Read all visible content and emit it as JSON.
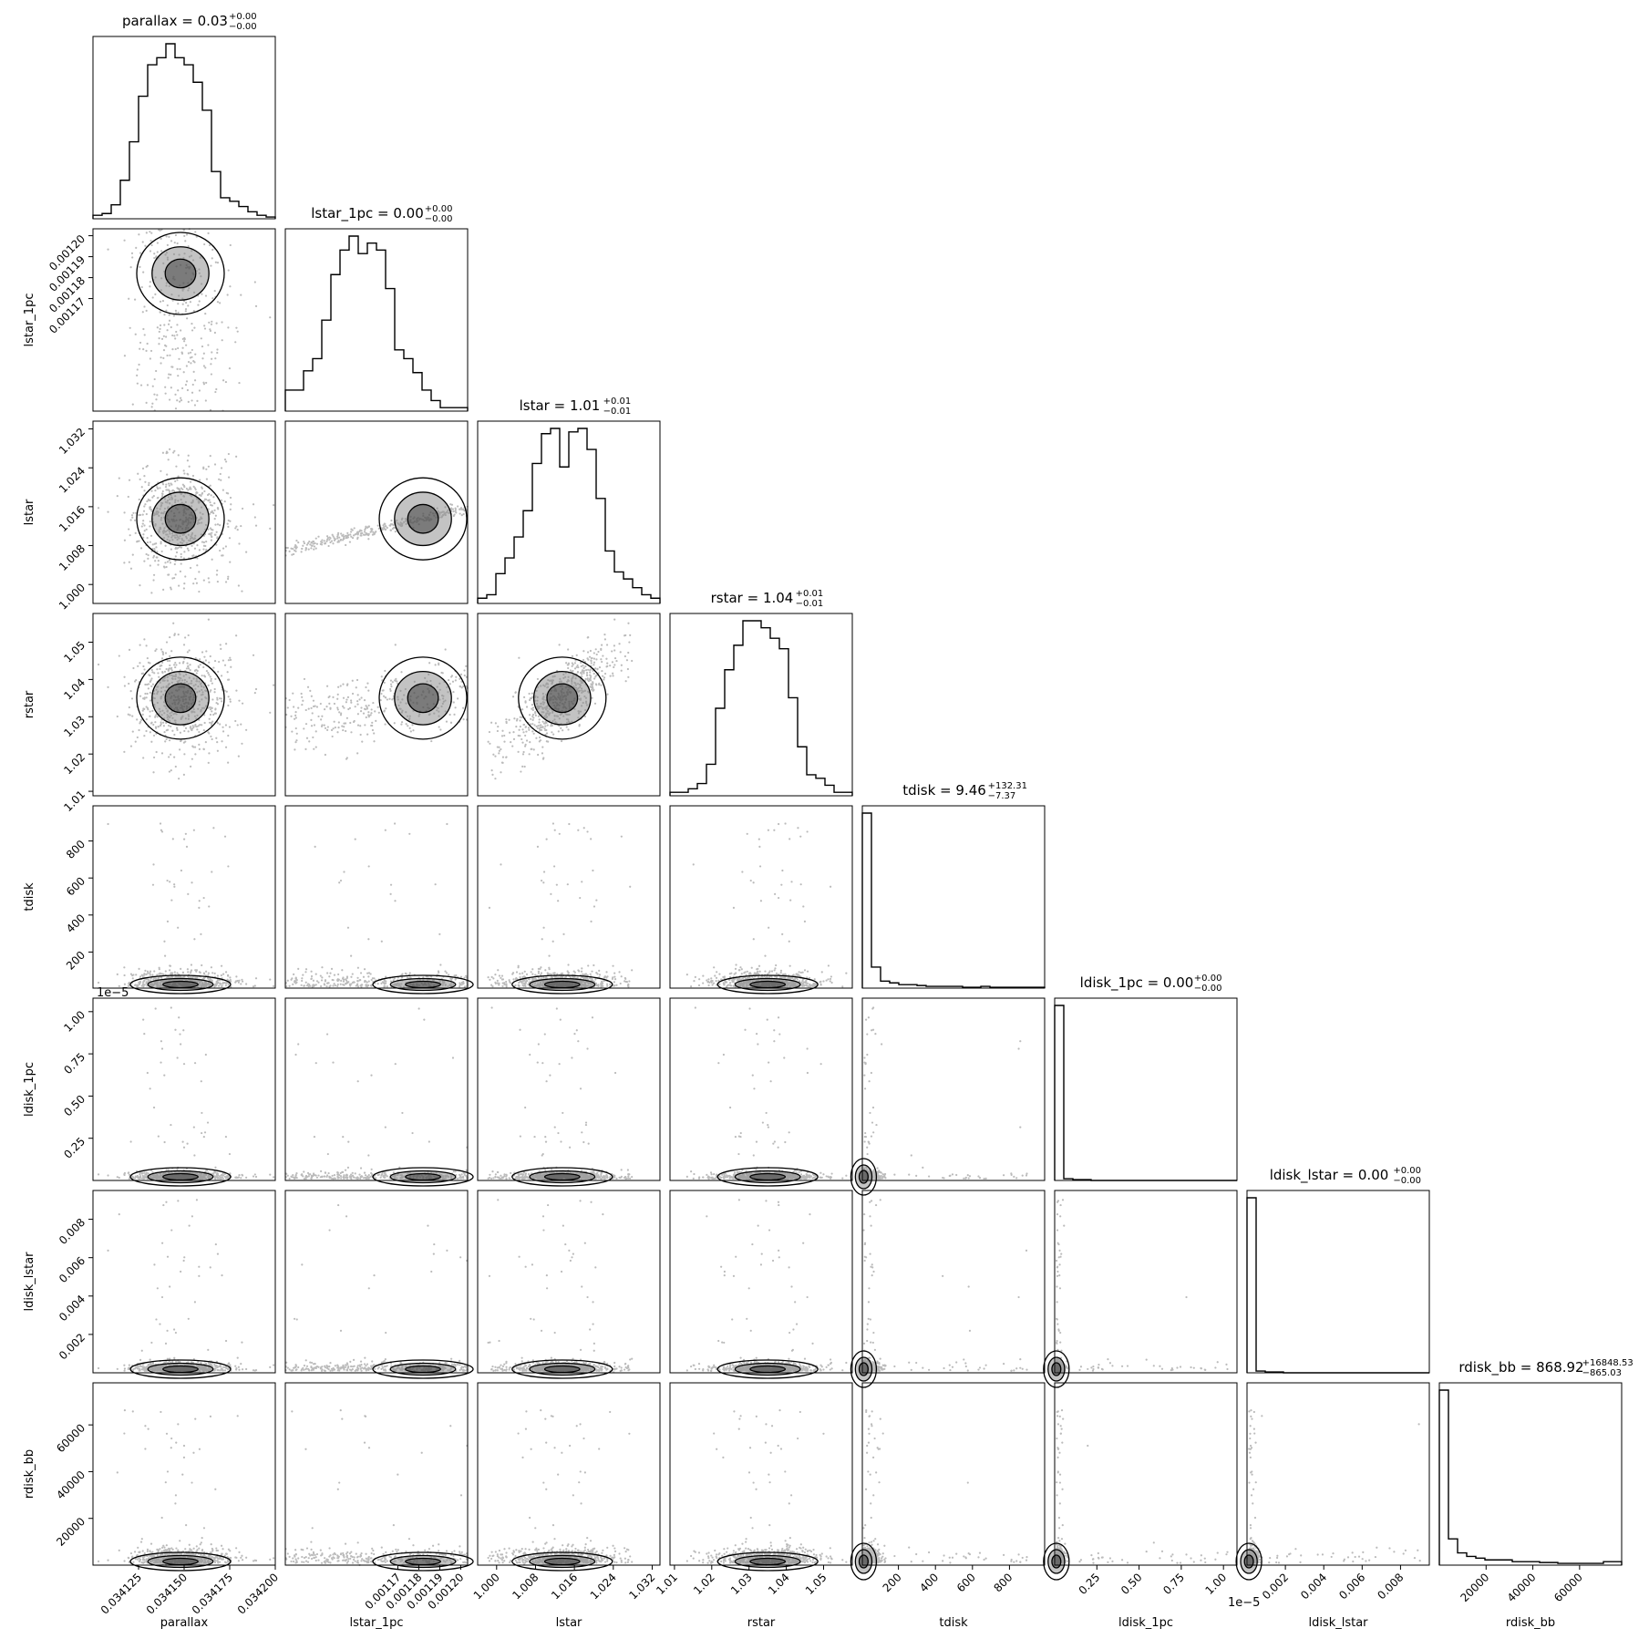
{
  "chart_data": {
    "type": "corner",
    "parameters": [
      {
        "name": "parallax",
        "title": "parallax = 0.03",
        "sup": "+0.00",
        "sub": "−0.00",
        "range": [
          34100,
          34200
        ],
        "ticks": [
          34125,
          34150,
          34175,
          34200
        ],
        "tick_labels": [
          "0.034125",
          "0.034150",
          "0.034175",
          "0.034200"
        ],
        "center": 34148,
        "spread": 15
      },
      {
        "name": "lstar_1pc",
        "title": "lstar_1pc = 0.00",
        "sup": "+0.00",
        "sub": "−0.00",
        "range": [
          1.1163,
          1.2033
        ],
        "ticks": [
          1.17,
          1.18,
          1.19,
          1.2
        ],
        "tick_labels": [
          "0.00117",
          "0.00118",
          "0.00119",
          "0.00120"
        ],
        "center": 1.182,
        "spread": 0.055
      },
      {
        "name": "lstar",
        "title": "lstar = 1.01",
        "sup": "+0.01",
        "sub": "−0.01",
        "range": [
          0.9961,
          1.0336
        ],
        "ticks": [
          1.0,
          1.008,
          1.016,
          1.024,
          1.032
        ],
        "tick_labels": [
          "1.000",
          "1.008",
          "1.016",
          "1.024",
          "1.032"
        ],
        "center": 1.0135,
        "spread": 0.0055
      },
      {
        "name": "rstar",
        "title": "rstar = 1.04",
        "sup": "+0.01",
        "sub": "−0.01",
        "range": [
          1.0088,
          1.0577
        ],
        "ticks": [
          1.01,
          1.02,
          1.03,
          1.04,
          1.05
        ],
        "tick_labels": [
          "1.01",
          "1.02",
          "1.03",
          "1.04",
          "1.05"
        ],
        "center": 1.035,
        "spread": 0.0075
      },
      {
        "name": "tdisk",
        "title": "tdisk = 9.46",
        "sup": "+132.31",
        "sub": "−7.37",
        "range": [
          5,
          990
        ],
        "ticks": [
          200,
          400,
          600,
          800
        ],
        "tick_labels": [
          "200",
          "400",
          "600",
          "800"
        ],
        "center": 12,
        "spread": 40
      },
      {
        "name": "ldisk_1pc",
        "title": "ldisk_1pc = 0.00",
        "sup": "+0.00",
        "sub": "−0.00",
        "range": [
          0,
          1.08
        ],
        "ticks": [
          0.25,
          0.5,
          0.75,
          1.0
        ],
        "tick_labels": [
          "0.25",
          "0.50",
          "0.75",
          "1.00"
        ],
        "offset_label": "1e−5",
        "center": 0.01,
        "spread": 0.02
      },
      {
        "name": "ldisk_lstar",
        "title": "ldisk_lstar = 0.00",
        "sup": "+0.00",
        "sub": "−0.00",
        "range": [
          0,
          0.0095
        ],
        "ticks": [
          0.002,
          0.004,
          0.006,
          0.008
        ],
        "tick_labels": [
          "0.002",
          "0.004",
          "0.006",
          "0.008"
        ],
        "center": 0.0001,
        "spread": 0.0002
      },
      {
        "name": "rdisk_bb",
        "title": "rdisk_bb = 868.92",
        "sup": "+16848.53",
        "sub": "−865.03",
        "range": [
          0,
          78000
        ],
        "ticks": [
          20000,
          40000,
          60000
        ],
        "tick_labels": [
          "20000",
          "40000",
          "60000"
        ],
        "center": 900,
        "spread": 3000
      }
    ],
    "histograms": [
      [
        2,
        3,
        8,
        22,
        44,
        70,
        88,
        92,
        100,
        92,
        88,
        78,
        62,
        27,
        12,
        10,
        7,
        4,
        2,
        1
      ],
      [
        12,
        12,
        23,
        30,
        52,
        78,
        92,
        100,
        90,
        96,
        92,
        70,
        35,
        30,
        22,
        12,
        6,
        2,
        2,
        2
      ],
      [
        3,
        5,
        17,
        26,
        38,
        53,
        80,
        97,
        100,
        78,
        98,
        100,
        88,
        60,
        30,
        18,
        14,
        9,
        5,
        3
      ],
      [
        2,
        2,
        4,
        7,
        18,
        50,
        72,
        86,
        100,
        100,
        96,
        90,
        84,
        56,
        28,
        12,
        10,
        6,
        2,
        2
      ],
      [
        100,
        12,
        4,
        3,
        2,
        2,
        1.5,
        1,
        1,
        1,
        1,
        0.5,
        0.5,
        1,
        0.5,
        0.5,
        0.5,
        0.5,
        0.5,
        0.5
      ],
      [
        100,
        1,
        0.5,
        0.5,
        0,
        0,
        0,
        0,
        0,
        0,
        0,
        0,
        0,
        0,
        0,
        0,
        0,
        0,
        0,
        0
      ],
      [
        100,
        1,
        0.5,
        0.5,
        0,
        0,
        0,
        0,
        0,
        0,
        0,
        0,
        0,
        0,
        0,
        0,
        0,
        0,
        0,
        0
      ],
      [
        100,
        15,
        7,
        5,
        4,
        3,
        3,
        3,
        2,
        2,
        2,
        1.5,
        1.5,
        1,
        1,
        1,
        1,
        1,
        2,
        2
      ]
    ]
  }
}
